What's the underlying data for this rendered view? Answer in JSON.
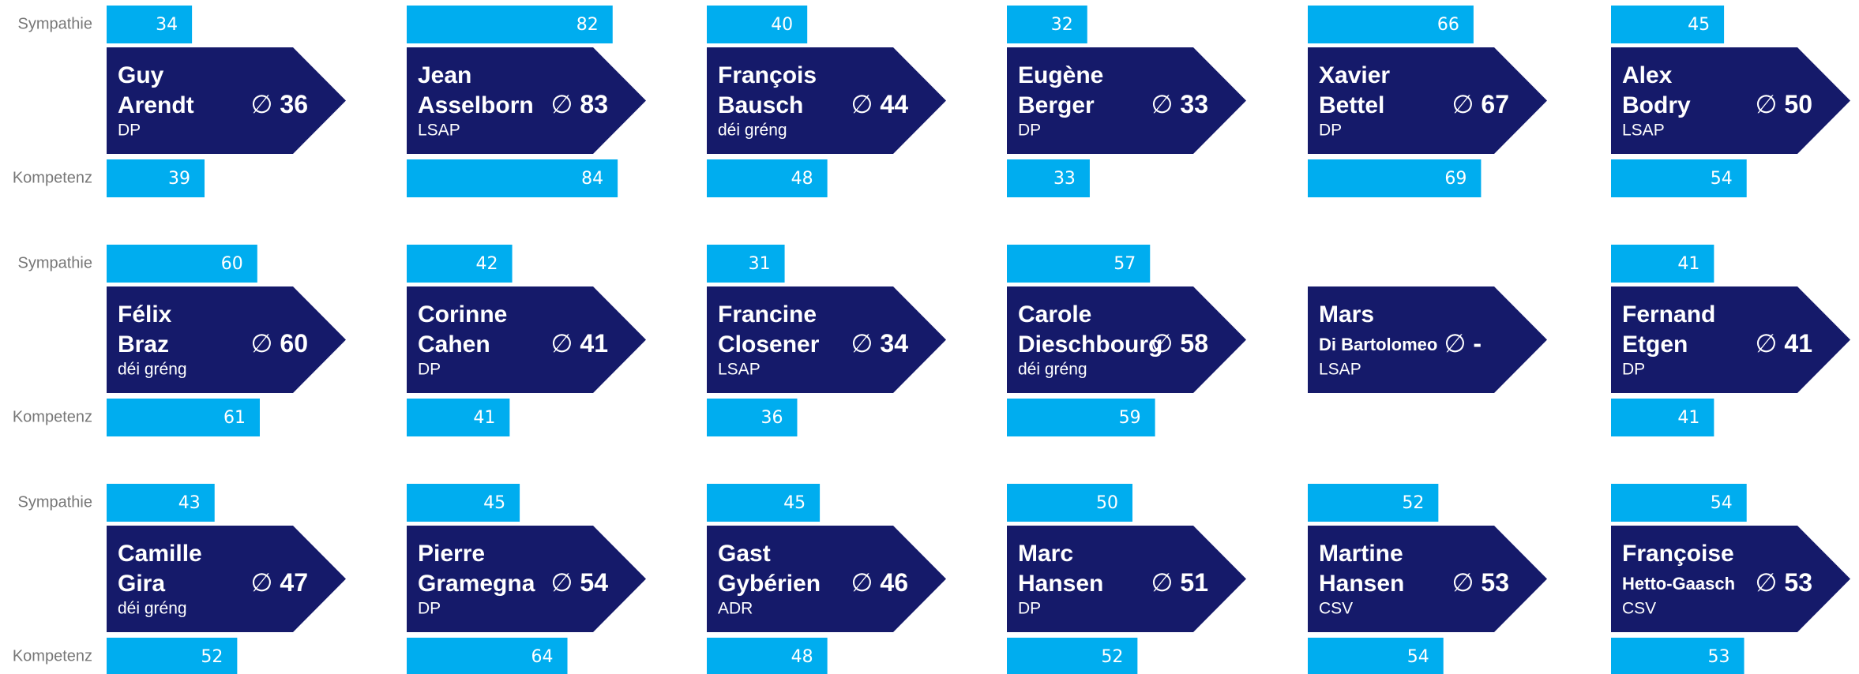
{
  "row_labels": {
    "sympathie": "Sympathie",
    "kompetenz": "Kompetenz"
  },
  "average_symbol": "∅",
  "people": [
    {
      "first": "Guy",
      "last": "Arendt",
      "party": "DP",
      "sympathie": 34,
      "kompetenz": 39,
      "average": 36
    },
    {
      "first": "Jean",
      "last": "Asselborn",
      "party": "LSAP",
      "sympathie": 82,
      "kompetenz": 84,
      "average": 83
    },
    {
      "first": "François",
      "last": "Bausch",
      "party": "déi gréng",
      "sympathie": 40,
      "kompetenz": 48,
      "average": 44
    },
    {
      "first": "Eugène",
      "last": "Berger",
      "party": "DP",
      "sympathie": 32,
      "kompetenz": 33,
      "average": 33
    },
    {
      "first": "Xavier",
      "last": "Bettel",
      "party": "DP",
      "sympathie": 66,
      "kompetenz": 69,
      "average": 67
    },
    {
      "first": "Alex",
      "last": "Bodry",
      "party": "LSAP",
      "sympathie": 45,
      "kompetenz": 54,
      "average": 50
    },
    {
      "first": "Félix",
      "last": "Braz",
      "party": "déi gréng",
      "sympathie": 60,
      "kompetenz": 61,
      "average": 60
    },
    {
      "first": "Corinne",
      "last": "Cahen",
      "party": "DP",
      "sympathie": 42,
      "kompetenz": 41,
      "average": 41
    },
    {
      "first": "Francine",
      "last": "Closener",
      "party": "LSAP",
      "sympathie": 31,
      "kompetenz": 36,
      "average": 34
    },
    {
      "first": "Carole",
      "last": "Dieschbourg",
      "party": "déi gréng",
      "sympathie": 57,
      "kompetenz": 59,
      "average": 58
    },
    {
      "first": "Mars",
      "last": "Di Bartolomeo",
      "party": "LSAP",
      "sympathie": null,
      "kompetenz": null,
      "average": "-"
    },
    {
      "first": "Fernand",
      "last": "Etgen",
      "party": "DP",
      "sympathie": 41,
      "kompetenz": 41,
      "average": 41
    },
    {
      "first": "Camille",
      "last": "Gira",
      "party": "déi gréng",
      "sympathie": 43,
      "kompetenz": 52,
      "average": 47
    },
    {
      "first": "Pierre",
      "last": "Gramegna",
      "party": "DP",
      "sympathie": 45,
      "kompetenz": 64,
      "average": 54
    },
    {
      "first": "Gast",
      "last": "Gybérien",
      "party": "ADR",
      "sympathie": 45,
      "kompetenz": 48,
      "average": 46
    },
    {
      "first": "Marc",
      "last": "Hansen",
      "party": "DP",
      "sympathie": 50,
      "kompetenz": 52,
      "average": 51
    },
    {
      "first": "Martine",
      "last": "Hansen",
      "party": "CSV",
      "sympathie": 52,
      "kompetenz": 54,
      "average": 53
    },
    {
      "first": "Françoise",
      "last": "Hetto-Gaasch",
      "party": "CSV",
      "sympathie": 54,
      "kompetenz": 53,
      "average": 53
    }
  ]
}
